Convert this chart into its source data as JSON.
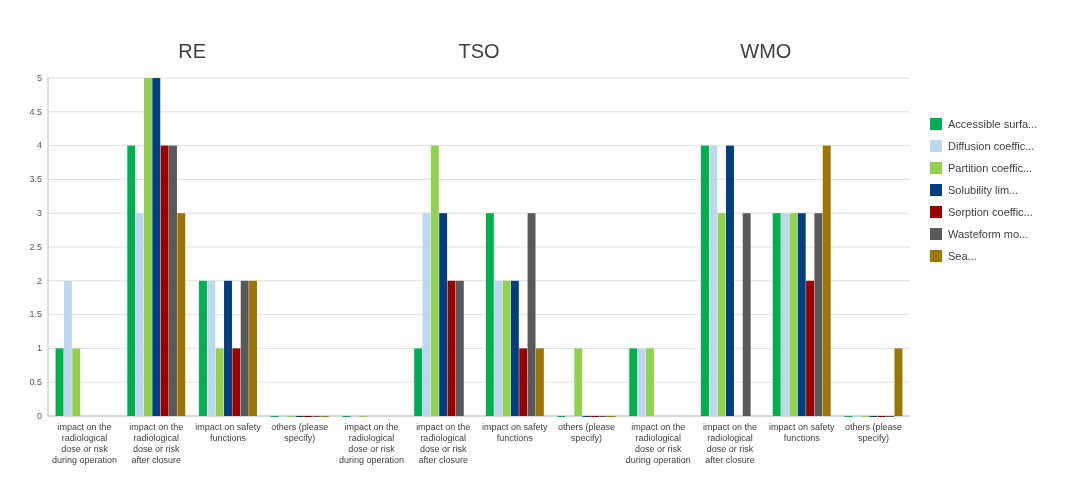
{
  "chart_data": {
    "type": "bar",
    "annotations": [
      "RE",
      "TSO",
      "WMO"
    ],
    "categories": [
      "impact on the radiological dose or risk during operation",
      "impact on the radiological dose or risk after closure",
      "impact on safety functions",
      "others (please specify)",
      "impact on the radiological dose or risk during operation",
      "impact on the radiological dose or risk after closure",
      "impact on safety functions",
      "others (please specify)",
      "impact on the radiological dose or risk during operation",
      "impact on the radiological dose or risk after closure",
      "impact on safety functions",
      "others (please specify)"
    ],
    "series": [
      {
        "name": "Accessible surfa...",
        "color": "#00b050",
        "values": [
          1,
          4,
          2,
          0,
          0,
          1,
          3,
          0,
          1,
          4,
          3,
          0
        ]
      },
      {
        "name": "Diffusion coeffic...",
        "color": "#bdd7ee",
        "values": [
          2,
          3,
          2,
          0,
          0,
          3,
          2,
          0,
          1,
          4,
          3,
          0
        ]
      },
      {
        "name": "Partition coeffic...",
        "color": "#92d050",
        "values": [
          1,
          5,
          1,
          0,
          0,
          4,
          2,
          1,
          1,
          3,
          3,
          0
        ]
      },
      {
        "name": "Solubility lim...",
        "color": "#003f7f",
        "values": [
          null,
          5,
          2,
          0,
          null,
          3,
          2,
          0,
          null,
          4,
          3,
          0
        ]
      },
      {
        "name": "Sorption coeffic...",
        "color": "#9b0000",
        "values": [
          null,
          4,
          1,
          0,
          null,
          2,
          1,
          0,
          null,
          null,
          2,
          0
        ]
      },
      {
        "name": "Wasteform mo...",
        "color": "#595959",
        "values": [
          null,
          4,
          2,
          0,
          null,
          2,
          3,
          0,
          null,
          3,
          3,
          0
        ]
      },
      {
        "name": "Sea...",
        "color": "#9c7600",
        "values": [
          null,
          3,
          2,
          0,
          null,
          null,
          1,
          0,
          null,
          null,
          4,
          1
        ]
      }
    ],
    "ylim": [
      0,
      5
    ],
    "yticks": [
      0,
      0.5,
      1,
      1.5,
      2,
      2.5,
      3,
      3.5,
      4,
      4.5,
      5
    ],
    "grid": "y",
    "legend": "right"
  }
}
